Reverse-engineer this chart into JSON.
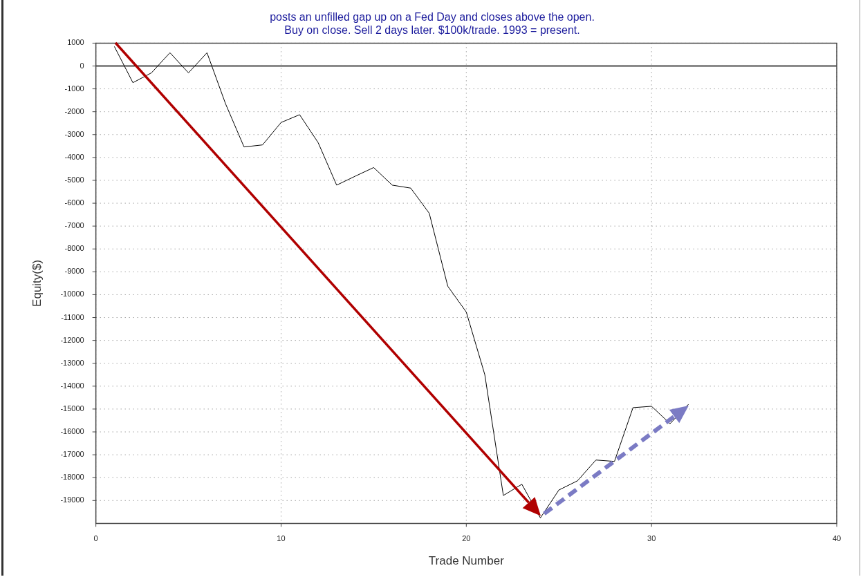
{
  "chart_data": {
    "type": "line",
    "title": "posts an unfilled gap up on a Fed Day and closes above the open.",
    "subtitle": "Buy on close. Sell 2 days later. $100k/trade. 1993 = present.",
    "xlabel": "Trade Number",
    "ylabel": "Equity($)",
    "x": [
      1,
      2,
      3,
      4,
      5,
      6,
      7,
      8,
      9,
      10,
      11,
      12,
      13,
      14,
      15,
      16,
      17,
      18,
      19,
      20,
      21,
      22,
      23,
      24,
      25,
      26,
      27,
      28,
      29,
      30,
      31,
      32
    ],
    "series": [
      {
        "color": "#000000",
        "values": [
          850,
          -730,
          -300,
          580,
          -300,
          580,
          -1650,
          -3540,
          -3450,
          -2470,
          -2130,
          -3350,
          -5210,
          -4820,
          -4440,
          -5210,
          -5340,
          -6440,
          -9630,
          -10760,
          -13500,
          -18780,
          -18290,
          -19760,
          -18540,
          -18140,
          -17230,
          -17290,
          -14940,
          -14880,
          -15640,
          -14790
        ]
      }
    ],
    "xlim": [
      0,
      40
    ],
    "xticks": [
      0,
      10,
      20,
      30,
      40
    ],
    "ylim": [
      -20000,
      1000
    ],
    "yticks": [
      1000,
      0,
      -1000,
      -2000,
      -3000,
      -4000,
      -5000,
      -6000,
      -7000,
      -8000,
      -9000,
      -10000,
      -11000,
      -12000,
      -13000,
      -14000,
      -15000,
      -16000,
      -17000,
      -18000,
      -19000
    ],
    "ref_lines": [
      {
        "axis": "y",
        "value": 0,
        "color": "#000000"
      }
    ],
    "grid": true,
    "legend": false,
    "marker": "none",
    "line_style": "solid"
  }
}
